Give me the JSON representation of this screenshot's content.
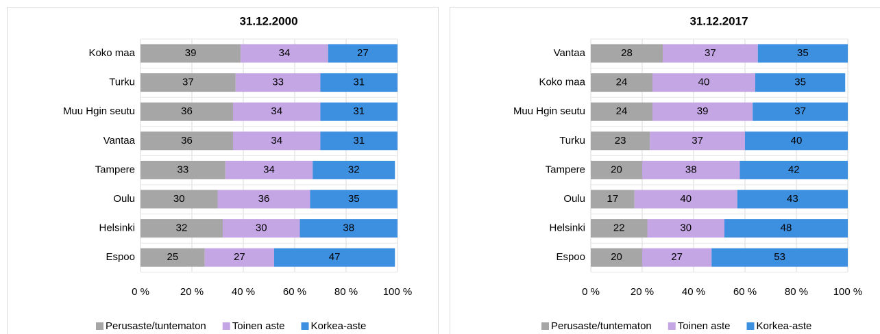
{
  "chart_data": [
    {
      "type": "bar",
      "orientation": "horizontal",
      "stacked": true,
      "title": "31.12.2000",
      "categories": [
        "Koko maa",
        "Turku",
        "Muu Hgin seutu",
        "Vantaa",
        "Tampere",
        "Oulu",
        "Helsinki",
        "Espoo"
      ],
      "series": [
        {
          "name": "Perusaste/tuntematon",
          "color": "#a6a6a6",
          "values": [
            39,
            37,
            36,
            36,
            33,
            30,
            32,
            25
          ]
        },
        {
          "name": "Toinen aste",
          "color": "#c5a6e4",
          "values": [
            34,
            33,
            34,
            34,
            34,
            36,
            30,
            27
          ]
        },
        {
          "name": "Korkea-aste",
          "color": "#3d8fe0",
          "values": [
            27,
            31,
            31,
            31,
            32,
            35,
            38,
            47
          ]
        }
      ],
      "xlim": [
        0,
        100
      ],
      "xticks": [
        {
          "value": 0,
          "label": "0 %"
        },
        {
          "value": 20,
          "label": "20 %"
        },
        {
          "value": 40,
          "label": "40 %"
        },
        {
          "value": 60,
          "label": "60 %"
        },
        {
          "value": 80,
          "label": "80 %"
        },
        {
          "value": 100,
          "label": "100 %"
        }
      ],
      "grid": true,
      "legend": "bottom"
    },
    {
      "type": "bar",
      "orientation": "horizontal",
      "stacked": true,
      "title": "31.12.2017",
      "categories": [
        "Vantaa",
        "Koko maa",
        "Muu Hgin seutu",
        "Turku",
        "Tampere",
        "Oulu",
        "Helsinki",
        "Espoo"
      ],
      "series": [
        {
          "name": "Perusaste/tuntematon",
          "color": "#a6a6a6",
          "values": [
            28,
            24,
            24,
            23,
            20,
            17,
            22,
            20
          ]
        },
        {
          "name": "Toinen aste",
          "color": "#c5a6e4",
          "values": [
            37,
            40,
            39,
            37,
            38,
            40,
            30,
            27
          ]
        },
        {
          "name": "Korkea-aste",
          "color": "#3d8fe0",
          "values": [
            35,
            35,
            37,
            40,
            42,
            43,
            48,
            53
          ]
        }
      ],
      "xlim": [
        0,
        100
      ],
      "xticks": [
        {
          "value": 0,
          "label": "0 %"
        },
        {
          "value": 20,
          "label": "20 %"
        },
        {
          "value": 40,
          "label": "40 %"
        },
        {
          "value": 60,
          "label": "60 %"
        },
        {
          "value": 80,
          "label": "80 %"
        },
        {
          "value": 100,
          "label": "100 %"
        }
      ],
      "grid": true,
      "legend": "bottom"
    }
  ]
}
